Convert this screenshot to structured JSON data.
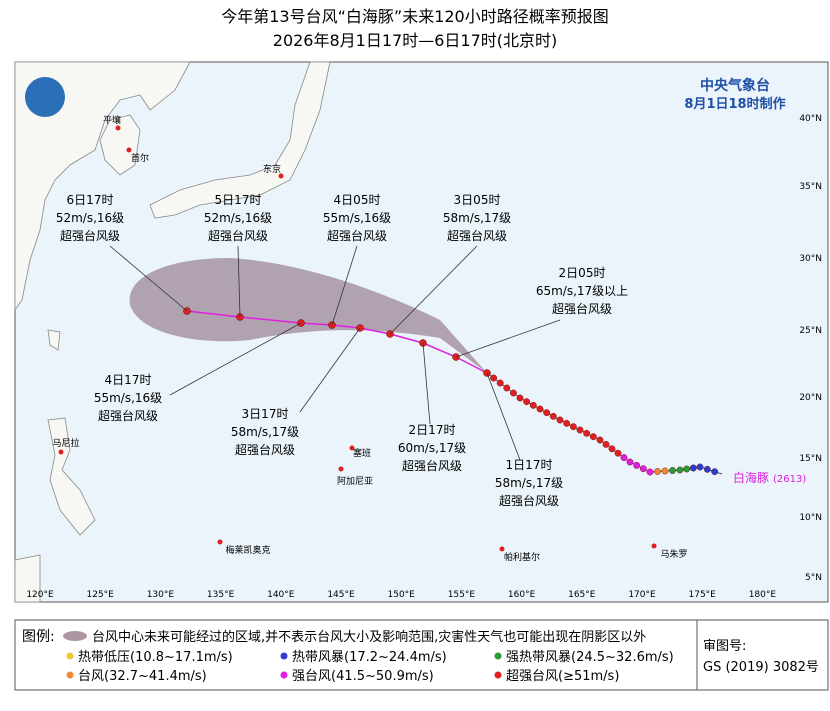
{
  "header": {
    "title": "今年第13号台风“白海豚”未来120小时路径概率预报图",
    "subtitle": "2026年8月1日17时—6日17时(北京时)"
  },
  "agency": {
    "name": "中央气象台",
    "issued": "8月1日18时制作"
  },
  "map": {
    "lon_labels": [
      "120°E",
      "125°E",
      "130°E",
      "135°E",
      "140°E",
      "145°E",
      "150°E",
      "155°E",
      "160°E",
      "165°E",
      "170°E",
      "175°E",
      "180°E"
    ],
    "lat_labels": [
      "40°N",
      "35°N",
      "30°N",
      "25°N",
      "20°N",
      "15°N",
      "10°N",
      "5°N"
    ],
    "places": [
      "平壤",
      "首尔",
      "东京",
      "马尼拉",
      "塞班",
      "阿加尼亚",
      "梅莱凯奥克",
      "帕利基尔",
      "马朱罗"
    ],
    "typhoon": {
      "name": "白海豚",
      "code": "(2613)"
    },
    "forecasts": [
      {
        "time": "6日17时",
        "wind": "52m/s,16级",
        "category": "超强台风级"
      },
      {
        "time": "5日17时",
        "wind": "52m/s,16级",
        "category": "超强台风级"
      },
      {
        "time": "4日05时",
        "wind": "55m/s,16级",
        "category": "超强台风级"
      },
      {
        "time": "3日05时",
        "wind": "58m/s,17级",
        "category": "超强台风级"
      },
      {
        "time": "2日05时",
        "wind": "65m/s,17级以上",
        "category": "超强台风级"
      },
      {
        "time": "4日17时",
        "wind": "55m/s,16级",
        "category": "超强台风级"
      },
      {
        "time": "3日17时",
        "wind": "58m/s,17级",
        "category": "超强台风级"
      },
      {
        "time": "2日17时",
        "wind": "60m/s,17级",
        "category": "超强台风级"
      },
      {
        "time": "1日17时",
        "wind": "58m/s,17级",
        "category": "超强台风级"
      }
    ]
  },
  "legend": {
    "title": "图例:",
    "cone": "台风中心未来可能经过的区域,并不表示台风大小及影响范围,灾害性天气也可能出现在阴影区以外",
    "items": [
      "热带低压(10.8~17.1m/s)",
      "热带风暴(17.2~24.4m/s)",
      "强热带风暴(24.5~32.6m/s)",
      "台风(32.7~41.4m/s)",
      "强台风(41.5~50.9m/s)",
      "超强台风(≥51m/s)"
    ],
    "approval_label": "审图号:",
    "approval": "GS (2019) 3082号"
  }
}
